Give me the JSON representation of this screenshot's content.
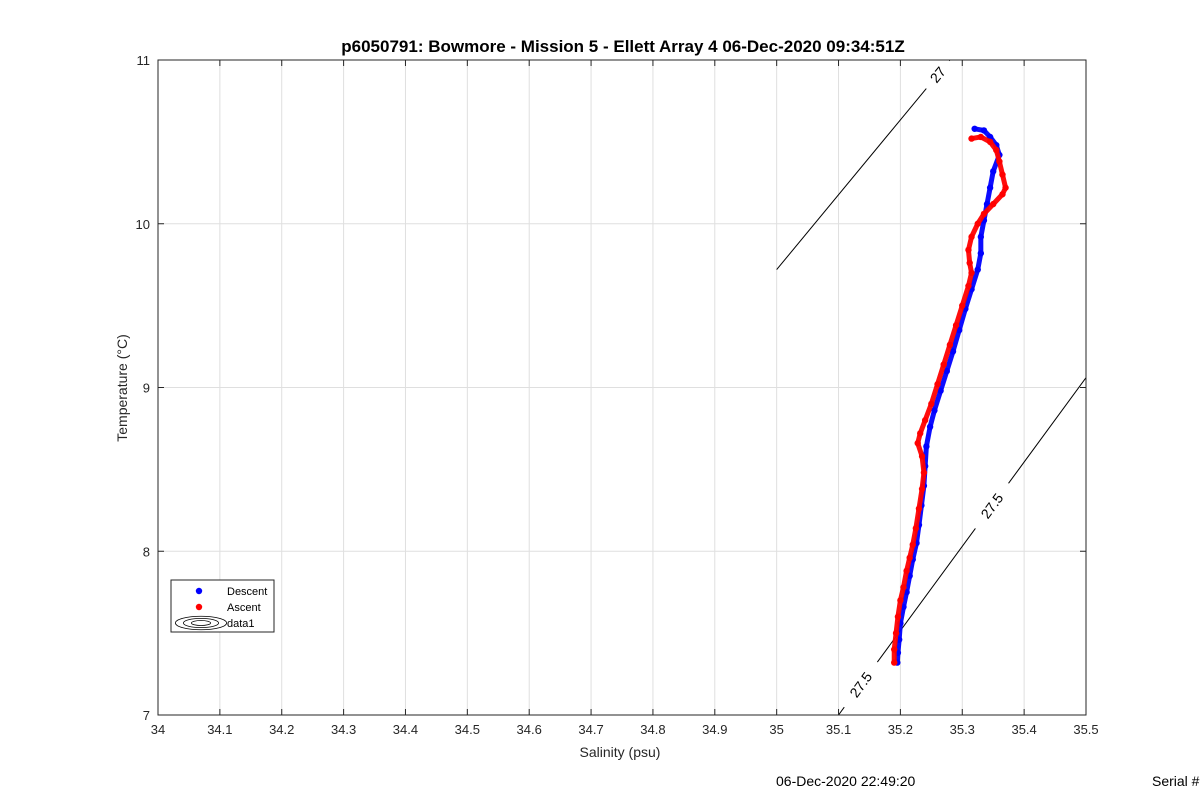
{
  "chart_data": {
    "type": "scatter",
    "title": "p6050791: Bowmore - Mission 5 - Ellett Array 4 06-Dec-2020 09:34:51Z",
    "xlabel": "Salinity (psu)",
    "ylabel": "Temperature (°C)",
    "xlim": [
      34,
      35.5
    ],
    "ylim": [
      7,
      11
    ],
    "xticks": [
      "34",
      "34.1",
      "34.2",
      "34.3",
      "34.4",
      "34.5",
      "34.6",
      "34.7",
      "34.8",
      "34.9",
      "35",
      "35.1",
      "35.2",
      "35.3",
      "35.4",
      "35.5"
    ],
    "yticks": [
      "7",
      "8",
      "9",
      "10",
      "11"
    ],
    "grid": true,
    "legend_position": "lower-left",
    "legend": [
      "Descent",
      "Ascent",
      "data1"
    ],
    "series": [
      {
        "name": "Descent",
        "color": "#0000ff",
        "points": [
          [
            35.32,
            10.58
          ],
          [
            35.335,
            10.57
          ],
          [
            35.345,
            10.53
          ],
          [
            35.355,
            10.48
          ],
          [
            35.36,
            10.42
          ],
          [
            35.35,
            10.32
          ],
          [
            35.345,
            10.22
          ],
          [
            35.34,
            10.12
          ],
          [
            35.335,
            10.02
          ],
          [
            35.33,
            9.92
          ],
          [
            35.33,
            9.82
          ],
          [
            35.325,
            9.72
          ],
          [
            35.315,
            9.6
          ],
          [
            35.305,
            9.48
          ],
          [
            35.295,
            9.35
          ],
          [
            35.285,
            9.22
          ],
          [
            35.275,
            9.1
          ],
          [
            35.265,
            8.98
          ],
          [
            35.255,
            8.86
          ],
          [
            35.248,
            8.76
          ],
          [
            35.242,
            8.64
          ],
          [
            35.24,
            8.52
          ],
          [
            35.238,
            8.4
          ],
          [
            35.234,
            8.28
          ],
          [
            35.23,
            8.16
          ],
          [
            35.226,
            8.05
          ],
          [
            35.22,
            7.95
          ],
          [
            35.215,
            7.85
          ],
          [
            35.21,
            7.75
          ],
          [
            35.205,
            7.66
          ],
          [
            35.2,
            7.56
          ],
          [
            35.198,
            7.46
          ],
          [
            35.196,
            7.38
          ],
          [
            35.195,
            7.32
          ]
        ]
      },
      {
        "name": "Ascent",
        "color": "#ff0000",
        "points": [
          [
            35.315,
            10.52
          ],
          [
            35.33,
            10.53
          ],
          [
            35.345,
            10.5
          ],
          [
            35.355,
            10.45
          ],
          [
            35.36,
            10.38
          ],
          [
            35.365,
            10.3
          ],
          [
            35.37,
            10.22
          ],
          [
            35.365,
            10.18
          ],
          [
            35.35,
            10.12
          ],
          [
            35.335,
            10.06
          ],
          [
            35.325,
            10.0
          ],
          [
            35.315,
            9.92
          ],
          [
            35.31,
            9.84
          ],
          [
            35.312,
            9.76
          ],
          [
            35.315,
            9.7
          ],
          [
            35.31,
            9.62
          ],
          [
            35.3,
            9.5
          ],
          [
            35.29,
            9.38
          ],
          [
            35.28,
            9.26
          ],
          [
            35.27,
            9.14
          ],
          [
            35.26,
            9.02
          ],
          [
            35.25,
            8.9
          ],
          [
            35.24,
            8.8
          ],
          [
            35.232,
            8.72
          ],
          [
            35.228,
            8.66
          ],
          [
            35.235,
            8.58
          ],
          [
            35.238,
            8.48
          ],
          [
            35.235,
            8.38
          ],
          [
            35.23,
            8.26
          ],
          [
            35.225,
            8.14
          ],
          [
            35.22,
            8.04
          ],
          [
            35.215,
            7.96
          ],
          [
            35.21,
            7.88
          ],
          [
            35.205,
            7.78
          ],
          [
            35.2,
            7.7
          ],
          [
            35.196,
            7.6
          ],
          [
            35.193,
            7.5
          ],
          [
            35.19,
            7.4
          ],
          [
            35.19,
            7.32
          ]
        ]
      }
    ],
    "contours": [
      {
        "label": "27",
        "from": [
          35.0,
          9.72
        ],
        "to": [
          35.28,
          11.0
        ]
      },
      {
        "label": "27.5",
        "from": [
          35.1,
          7.0
        ],
        "to": [
          35.5,
          9.06
        ]
      }
    ]
  },
  "footer": {
    "date": "06-Dec-2020 22:49:20",
    "serial": "Serial #"
  }
}
